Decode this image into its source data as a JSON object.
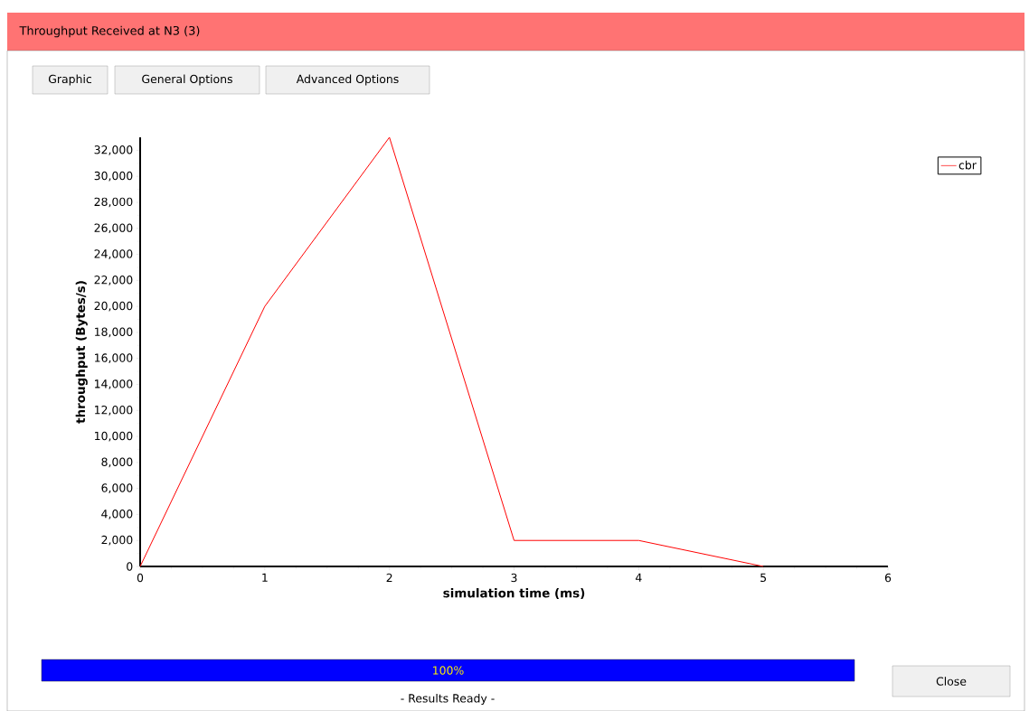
{
  "chart_data": {
    "type": "line",
    "title": "Throughput Received at N3 (3)",
    "xlabel": "simulation time (ms)",
    "ylabel": "throughput (Bytes/s)",
    "x": [
      0,
      1,
      2,
      3,
      4,
      5
    ],
    "series": [
      {
        "name": "cbr",
        "color": "#ff0000",
        "values": [
          0,
          20000,
          33000,
          2000,
          2000,
          0
        ]
      }
    ],
    "xlim": [
      0,
      6
    ],
    "xticks": [
      0,
      1,
      2,
      3,
      4,
      5,
      6
    ],
    "ylim": [
      0,
      33000
    ],
    "yticks": [
      0,
      {
        "value": 2000,
        "label": "2,000"
      },
      {
        "value": 4000,
        "label": "4,000"
      },
      {
        "value": 6000,
        "label": "6,000"
      },
      {
        "value": 8000,
        "label": "8,000"
      },
      {
        "value": 10000,
        "label": "10,000"
      },
      {
        "value": 12000,
        "label": "12,000"
      },
      {
        "value": 14000,
        "label": "14,000"
      },
      {
        "value": 16000,
        "label": "16,000"
      },
      {
        "value": 18000,
        "label": "18,000"
      },
      {
        "value": 20000,
        "label": "20,000"
      },
      {
        "value": 22000,
        "label": "22,000"
      },
      {
        "value": 24000,
        "label": "24,000"
      },
      {
        "value": 26000,
        "label": "26,000"
      },
      {
        "value": 28000,
        "label": "28,000"
      },
      {
        "value": 30000,
        "label": "30,000"
      },
      {
        "value": 32000,
        "label": "32,000"
      }
    ],
    "legend": "top right",
    "annotations": [
      "Graphic",
      "General Options",
      "Advanced Options",
      "100%",
      "- Results Ready -",
      "Close"
    ]
  }
}
